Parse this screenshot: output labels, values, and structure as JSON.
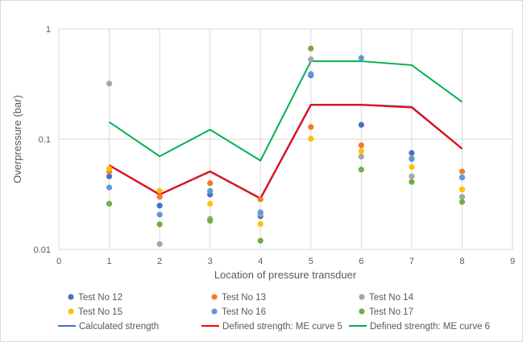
{
  "chart_data": {
    "type": "scatter",
    "xlabel": "Location of pressure transduer",
    "ylabel": "Overpressure (bar)",
    "xlim": [
      0,
      9
    ],
    "ylim": [
      0.01,
      1
    ],
    "y_scale": "log",
    "x_ticks": [
      "0",
      "1",
      "2",
      "3",
      "4",
      "5",
      "6",
      "7",
      "8",
      "9"
    ],
    "y_ticks": [
      "0.01",
      "0.1",
      "1"
    ],
    "grid": true,
    "legend_position": "bottom",
    "x": [
      1,
      2,
      3,
      4,
      5,
      6,
      7,
      8
    ],
    "series": [
      {
        "name": "Test No 12",
        "kind": "marker",
        "color": "#4472c4",
        "values": [
          0.046,
          0.025,
          0.0315,
          0.02,
          0.38,
          0.135,
          0.075,
          0.045
        ]
      },
      {
        "name": "Test No 13",
        "kind": "marker",
        "color": "#ed7d31",
        "values": [
          0.051,
          0.03,
          0.04,
          0.0285,
          0.129,
          0.088,
          0.067,
          0.051
        ]
      },
      {
        "name": "Test No 14",
        "kind": "marker",
        "color": "#a5a5a5",
        "values": [
          0.32,
          0.0112,
          0.019,
          0.021,
          0.53,
          0.0695,
          0.046,
          0.03
        ]
      },
      {
        "name": "Test No 15",
        "kind": "marker",
        "color": "#ffc000",
        "values": [
          0.054,
          0.034,
          0.026,
          0.017,
          0.101,
          0.078,
          0.056,
          0.035
        ]
      },
      {
        "name": "Test No 16",
        "kind": "marker",
        "color": "#5b9bd5",
        "values": [
          0.0365,
          0.0207,
          0.034,
          0.0217,
          0.39,
          0.546,
          0.066,
          0.045
        ]
      },
      {
        "name": "Test No 17",
        "kind": "marker",
        "color": "#70ad47",
        "values": [
          0.026,
          0.0169,
          0.0182,
          0.012,
          0.665,
          0.053,
          0.041,
          0.027
        ]
      },
      {
        "name": "Calculated strength",
        "kind": "line",
        "color": "#4472c4",
        "values": [
          0.058,
          0.0315,
          0.051,
          0.029,
          0.205,
          0.205,
          0.196,
          0.082
        ]
      },
      {
        "name": "Defined strength: ME curve 5",
        "kind": "line",
        "color": "#ff0000",
        "values": [
          0.058,
          0.0315,
          0.051,
          0.029,
          0.205,
          0.205,
          0.194,
          0.082
        ]
      },
      {
        "name": "Defined strength: ME curve 6",
        "kind": "line",
        "color": "#00b050",
        "values": [
          0.143,
          0.07,
          0.122,
          0.064,
          0.51,
          0.51,
          0.47,
          0.218
        ]
      }
    ]
  }
}
